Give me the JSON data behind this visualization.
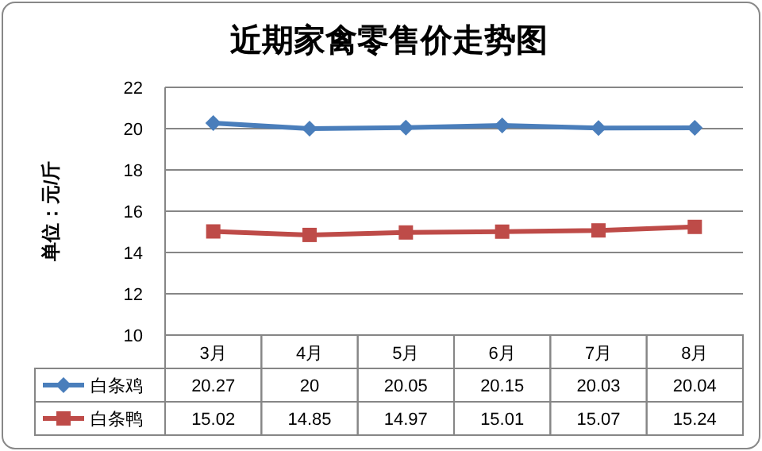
{
  "chart_data": {
    "type": "line",
    "title": "近期家禽零售价走势图",
    "ylabel": "单位：元/斤",
    "categories": [
      "3月",
      "4月",
      "5月",
      "6月",
      "7月",
      "8月"
    ],
    "series": [
      {
        "name": "白条鸡",
        "color": "#4a7ebb",
        "marker": "diamond",
        "values": [
          20.27,
          20,
          20.05,
          20.15,
          20.03,
          20.04
        ]
      },
      {
        "name": "白条鸭",
        "color": "#be4b48",
        "marker": "square",
        "values": [
          15.02,
          14.85,
          14.97,
          15.01,
          15.07,
          15.24
        ]
      }
    ],
    "ylim": [
      10,
      22
    ],
    "yticks": [
      10,
      12,
      14,
      16,
      18,
      20,
      22
    ],
    "grid": "y",
    "data_labels": true,
    "legend": "bottom"
  }
}
